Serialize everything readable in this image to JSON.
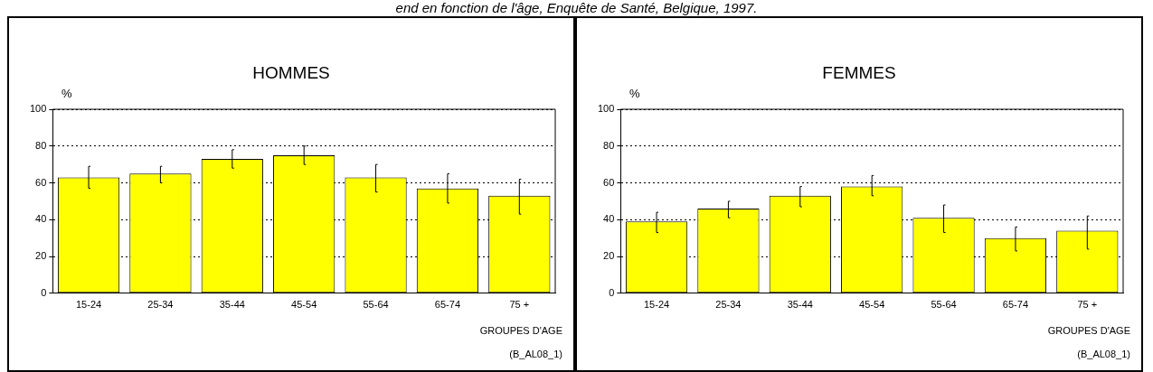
{
  "chart_data": [
    {
      "type": "bar",
      "title": "HOMMES",
      "ylabel": "%",
      "xlabel": "GROUPES D'AGE",
      "annotations": [
        "(B_AL08_1)",
        "end en fonction de l'âge, Enquête de Santé, Belgique, 1997."
      ],
      "categories": [
        "15-24",
        "25-34",
        "35-44",
        "45-54",
        "55-64",
        "65-74",
        "75 +"
      ],
      "values": [
        63,
        65,
        73,
        75,
        63,
        57,
        53
      ],
      "errors": [
        [
          57,
          69
        ],
        [
          60,
          69
        ],
        [
          68,
          78
        ],
        [
          70,
          80
        ],
        [
          55,
          70
        ],
        [
          49,
          65
        ],
        [
          43,
          62
        ]
      ],
      "color": "#ffff00",
      "ylim": [
        0,
        100
      ],
      "yticks": [
        0,
        20,
        40,
        60,
        80,
        100
      ],
      "grid": "y",
      "legend": false
    },
    {
      "type": "bar",
      "title": "FEMMES",
      "ylabel": "%",
      "xlabel": "GROUPES D'AGE",
      "annotations": [
        "(B_AL08_1)"
      ],
      "categories": [
        "15-24",
        "25-34",
        "35-44",
        "45-54",
        "55-64",
        "65-74",
        "75 +"
      ],
      "values": [
        39,
        46,
        53,
        58,
        41,
        30,
        34
      ],
      "errors": [
        [
          33,
          44
        ],
        [
          41,
          50
        ],
        [
          47,
          58
        ],
        [
          53,
          64
        ],
        [
          33,
          48
        ],
        [
          23,
          36
        ],
        [
          24,
          42
        ]
      ],
      "color": "#ffff00",
      "ylim": [
        0,
        100
      ],
      "yticks": [
        0,
        20,
        40,
        60,
        80,
        100
      ],
      "grid": "y",
      "legend": false
    }
  ]
}
